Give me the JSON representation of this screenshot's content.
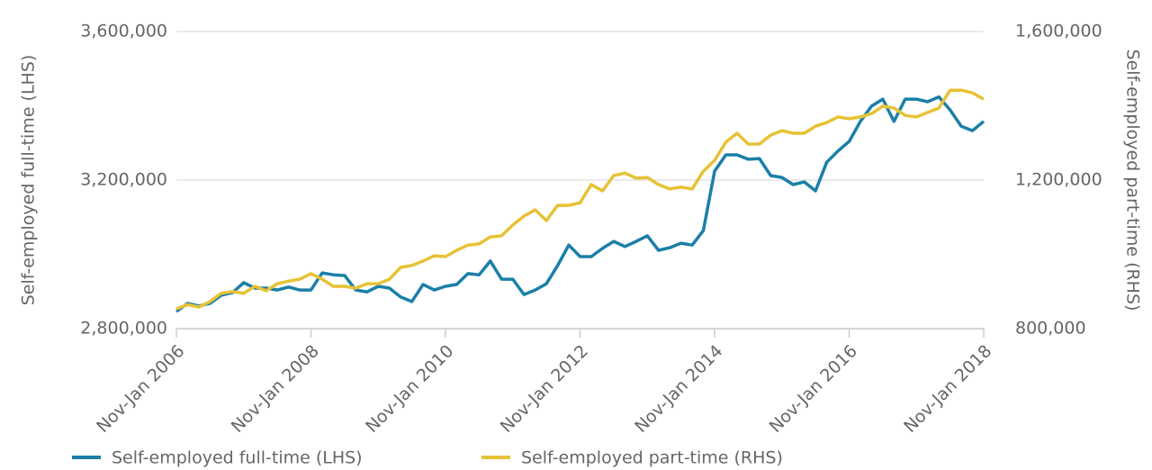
{
  "chart_data": {
    "type": "line",
    "categories": [
      "Nov-Jan 2006",
      null,
      null,
      null,
      null,
      null,
      null,
      null,
      null,
      null,
      null,
      null,
      "Nov-Jan 2008",
      null,
      null,
      null,
      null,
      null,
      null,
      null,
      null,
      null,
      null,
      null,
      "Nov-Jan 2010",
      null,
      null,
      null,
      null,
      null,
      null,
      null,
      null,
      null,
      null,
      null,
      "Nov-Jan 2012",
      null,
      null,
      null,
      null,
      null,
      null,
      null,
      null,
      null,
      null,
      null,
      "Nov-Jan 2014",
      null,
      null,
      null,
      null,
      null,
      null,
      null,
      null,
      null,
      null,
      null,
      "Nov-Jan 2016",
      null,
      null,
      null,
      null,
      null,
      null,
      null,
      null,
      null,
      null,
      null,
      "Nov-Jan 2018"
    ],
    "series": [
      {
        "name": "Self-employed full-time (LHS)",
        "color": "#1b7fa8",
        "axis": "y",
        "values": [
          2846000,
          2868000,
          2861000,
          2868000,
          2890000,
          2897000,
          2924000,
          2909000,
          2909000,
          2904000,
          2912000,
          2904000,
          2904000,
          2950000,
          2945000,
          2943000,
          2904000,
          2899000,
          2914000,
          2909000,
          2885000,
          2873000,
          2919000,
          2904000,
          2914000,
          2919000,
          2948000,
          2945000,
          2982000,
          2933000,
          2933000,
          2892000,
          2904000,
          2921000,
          2970000,
          3025000,
          2994000,
          2994000,
          3016000,
          3035000,
          3021000,
          3035000,
          3050000,
          3011000,
          3018000,
          3030000,
          3025000,
          3064000,
          3224000,
          3268000,
          3268000,
          3256000,
          3258000,
          3212000,
          3207000,
          3188000,
          3195000,
          3171000,
          3248000,
          3278000,
          3304000,
          3358000,
          3399000,
          3418000,
          3358000,
          3418000,
          3418000,
          3411000,
          3424000,
          3389000,
          3345000,
          3333000,
          3358000
        ]
      },
      {
        "name": "Self-employed part-time (RHS)",
        "color": "#e6c235",
        "axis": "y2",
        "values": [
          853000,
          865000,
          858000,
          873000,
          895000,
          900000,
          895000,
          914000,
          902000,
          921000,
          928000,
          933000,
          948000,
          933000,
          914000,
          914000,
          909000,
          921000,
          921000,
          933000,
          965000,
          970000,
          982000,
          996000,
          994000,
          1011000,
          1025000,
          1028000,
          1047000,
          1050000,
          1079000,
          1103000,
          1120000,
          1091000,
          1132000,
          1132000,
          1139000,
          1188000,
          1171000,
          1212000,
          1219000,
          1205000,
          1207000,
          1188000,
          1176000,
          1181000,
          1176000,
          1224000,
          1253000,
          1302000,
          1326000,
          1297000,
          1297000,
          1321000,
          1333000,
          1326000,
          1326000,
          1345000,
          1355000,
          1370000,
          1365000,
          1370000,
          1379000,
          1399000,
          1394000,
          1374000,
          1370000,
          1382000,
          1394000,
          1442000,
          1442000,
          1435000,
          1418000
        ]
      }
    ],
    "y_label": "Self-employed full-time (LHS)",
    "y2_label": "Self-employed part-time (RHS)",
    "ylim": [
      2800000,
      3600000
    ],
    "yticks": [
      {
        "value": 2800000,
        "label": "2,800,000"
      },
      {
        "value": 3200000,
        "label": "3,200,000"
      },
      {
        "value": 3600000,
        "label": "3,600,000"
      }
    ],
    "y2lim": [
      800000,
      1600000
    ],
    "y2ticks": [
      {
        "value": 800000,
        "label": "800,000"
      },
      {
        "value": 1200000,
        "label": "1,200,000"
      },
      {
        "value": 1600000,
        "label": "1,600,000"
      }
    ],
    "grid": true,
    "legend": "bottom"
  }
}
